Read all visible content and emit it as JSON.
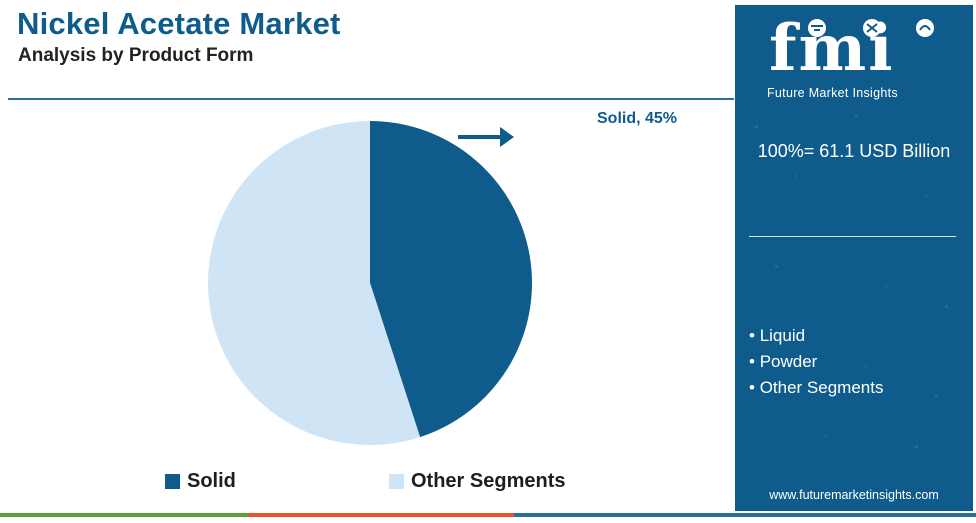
{
  "header": {
    "title": "Nickel Acetate Market",
    "subtitle": "Analysis by Product Form"
  },
  "chart_data": {
    "type": "pie",
    "categories": [
      "Solid",
      "Other Segments"
    ],
    "values": [
      45,
      55
    ],
    "unit": "%",
    "colors": [
      "#0f5c8c",
      "#cfe5f5"
    ],
    "annotations": [
      {
        "target": "Solid",
        "text": "Solid, 45%"
      }
    ],
    "legend": {
      "placement": "bottom",
      "entries": [
        "Solid",
        "Other Segments"
      ]
    }
  },
  "sidebar": {
    "logo_text": "fmi",
    "logo_tagline": "Future Market Insights",
    "total": "100%= 61.1 USD Billion",
    "other_segments": [
      "Liquid",
      "Powder",
      "Other Segments"
    ],
    "website": "www.futuremarketinsights.com"
  },
  "colors": {
    "brand": "#0f5c8c",
    "light": "#cfe5f5",
    "bottom_bar": [
      "#5aa13a",
      "#e2572b",
      "#2a6f9d"
    ]
  }
}
